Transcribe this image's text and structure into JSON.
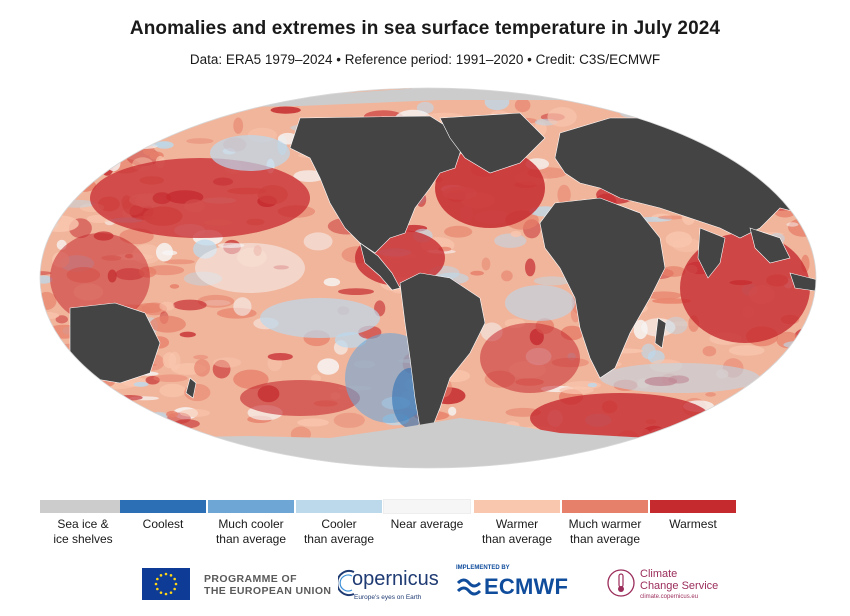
{
  "title": "Anomalies and extremes in sea surface temperature in July 2024",
  "subtitle": "Data: ERA5 1979–2024 • Reference period: 1991–2020 • Credit: C3S/ECMWF",
  "legend": [
    {
      "label": "Sea ice & ice shelves",
      "line1": "Sea ice &",
      "line2": "ice shelves",
      "color": "#cccccc"
    },
    {
      "label": "Coolest",
      "line1": "Coolest",
      "line2": "",
      "color": "#2c6fb4"
    },
    {
      "label": "Much cooler than average",
      "line1": "Much cooler",
      "line2": "than average",
      "color": "#6ea7d5"
    },
    {
      "label": "Cooler than average",
      "line1": "Cooler",
      "line2": "than average",
      "color": "#bcd9ec"
    },
    {
      "label": "Near average",
      "line1": "Near average",
      "line2": "",
      "color": "#f6f6f6"
    },
    {
      "label": "Warmer than average",
      "line1": "Warmer",
      "line2": "than average",
      "color": "#f9c6ae"
    },
    {
      "label": "Much warmer than average",
      "line1": "Much warmer",
      "line2": "than average",
      "color": "#e7806a"
    },
    {
      "label": "Warmest",
      "line1": "Warmest",
      "line2": "",
      "color": "#c52a2f"
    }
  ],
  "colors": {
    "land": "#444444",
    "ice": "#cccccc",
    "ocean_base": "#f1b59c"
  },
  "logos": {
    "eu_line1": "PROGRAMME OF",
    "eu_line2": "THE EUROPEAN UNION",
    "copernicus": "opernicus",
    "copernicus_sub": "Europe's eyes on Earth",
    "implemented_by": "IMPLEMENTED BY",
    "ecmwf": "ECMWF",
    "c3s_line1": "Climate",
    "c3s_line2": "Change Service",
    "c3s_url": "climate.copernicus.eu"
  }
}
